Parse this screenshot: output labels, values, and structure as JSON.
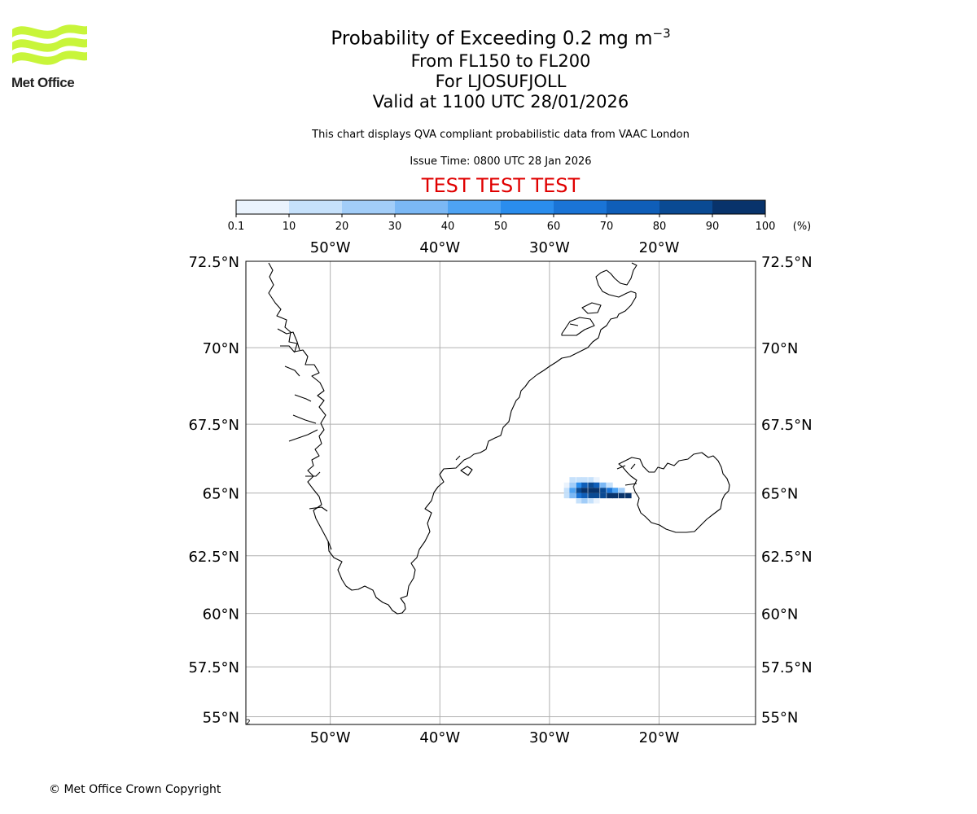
{
  "header": {
    "logo_icon": "met-office-waves-logo",
    "logo_text": "Met Office",
    "title_prefix": "Probability of Exceeding 0.2 mg m",
    "title_exponent": "−3",
    "flight_levels": "From FL150 to FL200",
    "volcano": "For LJOSUFJOLL",
    "valid_time": "Valid at 1100 UTC 28/01/2026",
    "description": "This chart displays QVA compliant probabilistic data from VAAC London",
    "issue_time": "Issue Time: 0800 UTC 28 Jan 2026",
    "test_banner": "TEST TEST TEST",
    "test_color": "#e00000"
  },
  "legend": {
    "ticks": [
      "0.1",
      "10",
      "20",
      "30",
      "40",
      "50",
      "60",
      "70",
      "80",
      "90",
      "100"
    ],
    "unit": "(%)",
    "colors": [
      "#eaf3fd",
      "#c6e1fb",
      "#a2cdf8",
      "#7bb8f5",
      "#4ea3f3",
      "#2a8ded",
      "#1a74d6",
      "#0f5eb8",
      "#0a4a93",
      "#08336b"
    ]
  },
  "chart_data": {
    "type": "heatmap",
    "title": "Probability of Exceeding 0.2 mg m−3",
    "value_unit": "%",
    "x_range_deg_lon": [
      -57.7,
      -11.2
    ],
    "y_range_deg_lat": [
      54.6,
      72.5
    ],
    "x_ticks": [
      "50°W",
      "40°W",
      "30°W",
      "20°W"
    ],
    "x_tick_values": [
      -50,
      -40,
      -30,
      -20
    ],
    "y_ticks": [
      "72.5°N",
      "70°N",
      "67.5°N",
      "65°N",
      "62.5°N",
      "60°N",
      "57.5°N",
      "55°N"
    ],
    "y_tick_values": [
      72.5,
      70,
      67.5,
      65,
      62.5,
      60,
      57.5,
      55
    ],
    "grid": true,
    "cells": [
      {
        "lon": -27.9,
        "lat": 65.5,
        "value": 10
      },
      {
        "lon": -27.3,
        "lat": 65.5,
        "value": 12
      },
      {
        "lon": -26.8,
        "lat": 65.5,
        "value": 18
      },
      {
        "lon": -26.2,
        "lat": 65.5,
        "value": 15
      },
      {
        "lon": -25.7,
        "lat": 65.5,
        "value": 8
      },
      {
        "lon": -28.4,
        "lat": 65.3,
        "value": 6
      },
      {
        "lon": -27.9,
        "lat": 65.3,
        "value": 25
      },
      {
        "lon": -27.3,
        "lat": 65.3,
        "value": 55
      },
      {
        "lon": -26.8,
        "lat": 65.3,
        "value": 75
      },
      {
        "lon": -26.2,
        "lat": 65.3,
        "value": 82
      },
      {
        "lon": -25.7,
        "lat": 65.3,
        "value": 70
      },
      {
        "lon": -25.1,
        "lat": 65.3,
        "value": 35
      },
      {
        "lon": -24.5,
        "lat": 65.3,
        "value": 12
      },
      {
        "lon": -28.4,
        "lat": 65.1,
        "value": 15
      },
      {
        "lon": -27.9,
        "lat": 65.1,
        "value": 45
      },
      {
        "lon": -27.3,
        "lat": 65.1,
        "value": 85
      },
      {
        "lon": -26.8,
        "lat": 65.1,
        "value": 95
      },
      {
        "lon": -26.2,
        "lat": 65.1,
        "value": 97
      },
      {
        "lon": -25.7,
        "lat": 65.1,
        "value": 95
      },
      {
        "lon": -25.1,
        "lat": 65.1,
        "value": 85
      },
      {
        "lon": -24.5,
        "lat": 65.1,
        "value": 65
      },
      {
        "lon": -24.0,
        "lat": 65.1,
        "value": 45
      },
      {
        "lon": -23.4,
        "lat": 65.1,
        "value": 25
      },
      {
        "lon": -28.4,
        "lat": 64.9,
        "value": 12
      },
      {
        "lon": -27.9,
        "lat": 64.9,
        "value": 35
      },
      {
        "lon": -27.3,
        "lat": 64.9,
        "value": 65
      },
      {
        "lon": -26.8,
        "lat": 64.9,
        "value": 75
      },
      {
        "lon": -26.2,
        "lat": 64.9,
        "value": 80
      },
      {
        "lon": -25.7,
        "lat": 64.9,
        "value": 82
      },
      {
        "lon": -25.1,
        "lat": 64.9,
        "value": 85
      },
      {
        "lon": -24.5,
        "lat": 64.9,
        "value": 90
      },
      {
        "lon": -24.0,
        "lat": 64.9,
        "value": 95
      },
      {
        "lon": -23.4,
        "lat": 64.9,
        "value": 98
      },
      {
        "lon": -22.8,
        "lat": 64.9,
        "value": 92
      },
      {
        "lon": -27.3,
        "lat": 64.7,
        "value": 15
      },
      {
        "lon": -26.8,
        "lat": 64.7,
        "value": 20
      },
      {
        "lon": -26.2,
        "lat": 64.7,
        "value": 15
      },
      {
        "lon": -25.7,
        "lat": 64.7,
        "value": 8
      }
    ]
  },
  "footer": {
    "copyright": "© Met Office Crown Copyright"
  }
}
